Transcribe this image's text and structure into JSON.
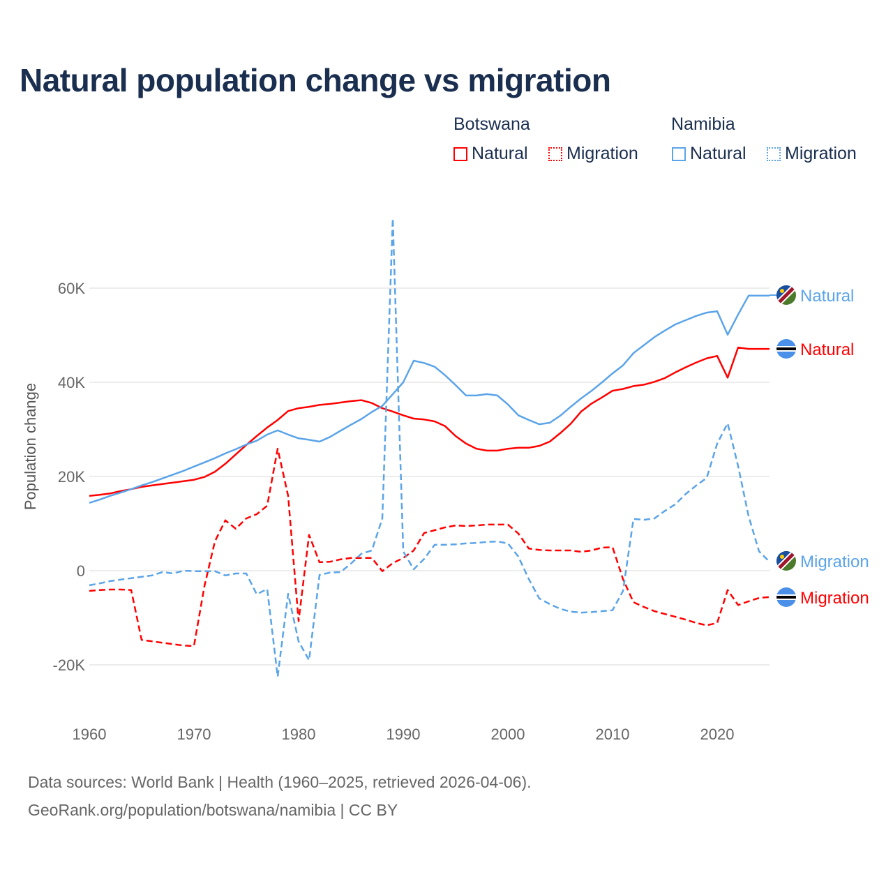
{
  "chart_data": {
    "type": "line",
    "title": "Natural population change vs migration",
    "ylabel": "Population change",
    "xlabel": "",
    "xlim": [
      1960,
      2025
    ],
    "ylim": [
      -30000,
      78000
    ],
    "yticks": [
      {
        "v": -20000,
        "label": "-20K"
      },
      {
        "v": 0,
        "label": "0"
      },
      {
        "v": 20000,
        "label": "20K"
      },
      {
        "v": 40000,
        "label": "40K"
      },
      {
        "v": 60000,
        "label": "60K"
      }
    ],
    "xticks": [
      {
        "v": 1960,
        "label": "1960"
      },
      {
        "v": 1970,
        "label": "1970"
      },
      {
        "v": 1980,
        "label": "1980"
      },
      {
        "v": 1990,
        "label": "1990"
      },
      {
        "v": 2000,
        "label": "2000"
      },
      {
        "v": 2010,
        "label": "2010"
      },
      {
        "v": 2020,
        "label": "2020"
      }
    ],
    "grid": true,
    "legend": {
      "placement": "top-right",
      "groups": [
        {
          "name": "Botswana",
          "items": [
            "Natural",
            "Migration"
          ]
        },
        {
          "name": "Namibia",
          "items": [
            "Natural",
            "Migration"
          ]
        }
      ]
    },
    "x_start": 1960,
    "series": [
      {
        "country": "Botswana",
        "name": "Natural",
        "color": "#ff0000",
        "dashed": false,
        "end_label": "Natural",
        "flag": "botswana-flag",
        "values": [
          15.9,
          16.1,
          16.4,
          16.9,
          17.3,
          17.8,
          18.1,
          18.4,
          18.7,
          19.0,
          19.3,
          19.9,
          21.0,
          22.7,
          24.7,
          26.7,
          28.6,
          30.4,
          32.0,
          33.9,
          34.5,
          34.8,
          35.2,
          35.4,
          35.7,
          36.0,
          36.2,
          35.6,
          34.5,
          33.8,
          33.0,
          32.3,
          32.1,
          31.7,
          30.7,
          28.6,
          27.0,
          25.9,
          25.5,
          25.5,
          25.9,
          26.1,
          26.1,
          26.5,
          27.4,
          29.2,
          31.2,
          33.8,
          35.5,
          36.8,
          38.2,
          38.6,
          39.2,
          39.5,
          40.1,
          40.9,
          42.1,
          43.2,
          44.2,
          45.1,
          45.6,
          41.0,
          47.4,
          47.1,
          47.1,
          47.1
        ]
      },
      {
        "country": "Botswana",
        "name": "Migration",
        "color": "#ff0000",
        "dashed": true,
        "end_label": "Migration",
        "flag": "botswana-flag",
        "values": [
          -4.3,
          -4.1,
          -4.0,
          -4.0,
          -4.1,
          -14.7,
          -15.0,
          -15.3,
          -15.6,
          -15.9,
          -16.0,
          -3.3,
          6.2,
          10.7,
          8.9,
          11.1,
          12.0,
          13.8,
          25.9,
          15.9,
          -10.7,
          7.6,
          1.8,
          1.9,
          2.4,
          2.7,
          2.7,
          2.7,
          -0.1,
          1.6,
          2.7,
          4.3,
          8.0,
          8.6,
          9.2,
          9.6,
          9.5,
          9.6,
          9.8,
          9.8,
          9.8,
          7.9,
          4.7,
          4.4,
          4.3,
          4.3,
          4.3,
          4.0,
          4.3,
          4.9,
          5.0,
          -1.8,
          -6.7,
          -7.7,
          -8.6,
          -9.2,
          -9.8,
          -10.4,
          -11.1,
          -11.6,
          -11.1,
          -4.1,
          -7.3,
          -6.5,
          -5.8,
          -5.6
        ]
      },
      {
        "country": "Namibia",
        "name": "Natural",
        "color": "#5ba4e8",
        "dashed": false,
        "end_label": "Natural",
        "flag": "namibia-flag",
        "values": [
          14.4,
          15.1,
          15.9,
          16.6,
          17.3,
          18.1,
          18.8,
          19.6,
          20.4,
          21.2,
          22.1,
          23.0,
          23.9,
          24.9,
          25.8,
          26.8,
          27.6,
          28.9,
          29.8,
          28.9,
          28.1,
          27.8,
          27.4,
          28.4,
          29.7,
          31.0,
          32.2,
          33.7,
          35.0,
          37.5,
          40.0,
          44.6,
          44.1,
          43.3,
          41.5,
          39.4,
          37.2,
          37.2,
          37.5,
          37.2,
          35.3,
          33.0,
          32.0,
          31.1,
          31.4,
          32.9,
          34.8,
          36.6,
          38.2,
          40.0,
          41.9,
          43.6,
          46.2,
          47.9,
          49.6,
          51.0,
          52.3,
          53.2,
          54.1,
          54.8,
          55.1,
          50.1,
          54.4,
          58.4,
          58.4,
          58.4
        ]
      },
      {
        "country": "Namibia",
        "name": "Migration",
        "color": "#5ba4e8",
        "dashed": true,
        "end_label": "Migration",
        "flag": "namibia-flag",
        "values": [
          -3.1,
          -2.7,
          -2.2,
          -1.9,
          -1.6,
          -1.3,
          -1.0,
          -0.3,
          -0.6,
          0.0,
          -0.1,
          -0.1,
          -0.1,
          -1.0,
          -0.6,
          -0.6,
          -5.0,
          -3.9,
          -22.5,
          -4.9,
          -15.0,
          -19.0,
          -0.9,
          -0.4,
          -0.3,
          1.5,
          3.6,
          4.3,
          11.1,
          74.8,
          4.1,
          0.3,
          2.5,
          5.5,
          5.5,
          5.6,
          5.8,
          5.9,
          6.1,
          6.2,
          5.8,
          3.0,
          -1.8,
          -5.9,
          -7.1,
          -8.1,
          -8.7,
          -8.9,
          -8.8,
          -8.6,
          -8.4,
          -4.3,
          11.0,
          10.8,
          11.1,
          12.7,
          14.1,
          16.3,
          18.1,
          19.7,
          27.0,
          31.3,
          22.2,
          11.6,
          4.1,
          1.9
        ]
      }
    ],
    "value_unit": "thousands"
  },
  "footer": {
    "line1": "Data sources: World Bank | Health (1960–2025, retrieved 2026-04-06).",
    "line2": "GeoRank.org/population/botswana/namibia | CC BY"
  }
}
